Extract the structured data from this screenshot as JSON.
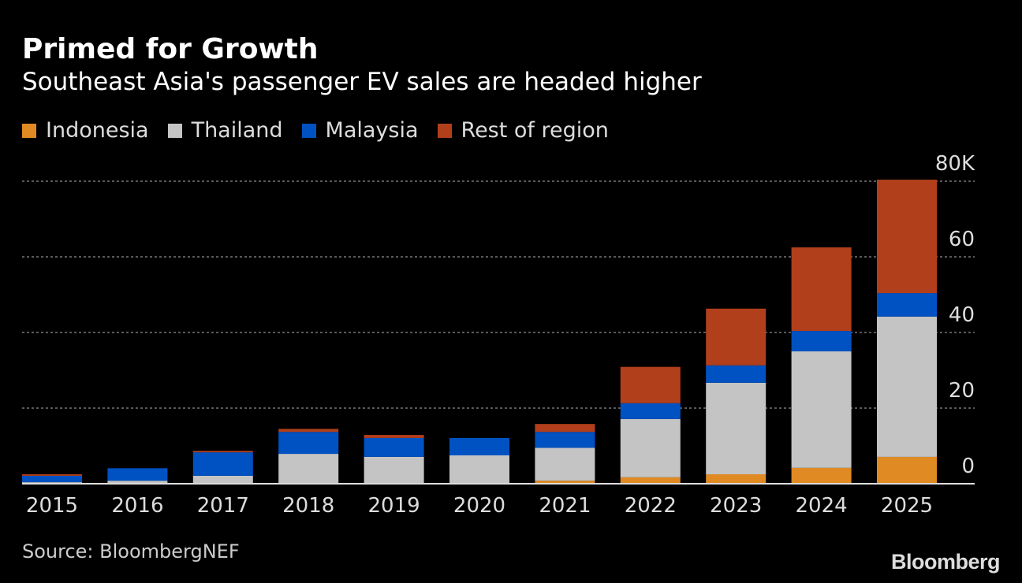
{
  "chart_data": {
    "type": "bar",
    "stacked": true,
    "title": "Primed for Growth",
    "subtitle": "Southeast Asia's passenger EV sales are headed higher",
    "categories": [
      "2015",
      "2016",
      "2017",
      "2018",
      "2019",
      "2020",
      "2021",
      "2022",
      "2023",
      "2024",
      "2025"
    ],
    "series": [
      {
        "name": "Indonesia",
        "color": "#e08a23",
        "values": [
          0,
          0,
          0,
          0,
          0,
          0,
          0.8,
          1.7,
          2.5,
          4.2,
          7.1
        ]
      },
      {
        "name": "Thailand",
        "color": "#c4c4c4",
        "values": [
          0.4,
          0.8,
          2.1,
          7.9,
          7.1,
          7.5,
          8.7,
          15.4,
          24.2,
          30.8,
          37.1
        ]
      },
      {
        "name": "Malaysia",
        "color": "#0052c2",
        "values": [
          1.7,
          3.3,
          6.2,
          5.8,
          5.0,
          4.6,
          4.2,
          4.2,
          4.6,
          5.4,
          6.2
        ]
      },
      {
        "name": "Rest of region",
        "color": "#b23f1b",
        "values": [
          0.4,
          0,
          0.4,
          0.8,
          0.8,
          0,
          2.1,
          9.6,
          15.0,
          22.1,
          30.0
        ]
      }
    ],
    "ylim": [
      0,
      80
    ],
    "yticks": [
      0,
      20,
      40,
      60,
      80
    ],
    "ytick_labels": [
      "0",
      "20",
      "40",
      "60",
      "80K"
    ],
    "yunit": "thousands",
    "grid": true,
    "legend_placement": "top-left",
    "source": "Source: BloombergNEF"
  },
  "branding": {
    "logo": "Bloomberg"
  }
}
